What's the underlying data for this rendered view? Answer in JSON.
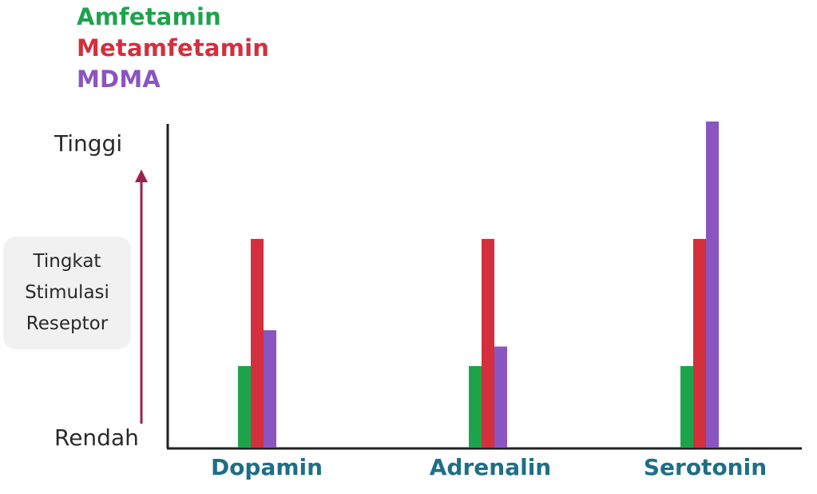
{
  "chart_data": {
    "type": "bar",
    "title": "",
    "xlabel": "",
    "ylabel": "Tingkat\nStimulasi\nReseptor",
    "y_high_label": "Tinggi",
    "y_low_label": "Rendah",
    "ylim": [
      0,
      100
    ],
    "categories": [
      "Dopamin",
      "Adrenalin",
      "Serotonin"
    ],
    "series": [
      {
        "name": "Amfetamin",
        "color": "#1ea34d",
        "values": [
          25,
          25,
          25
        ]
      },
      {
        "name": "Metamfetamin",
        "color": "#d32f3c",
        "values": [
          64,
          64,
          64
        ]
      },
      {
        "name": "MDMA",
        "color": "#8a55c0",
        "values": [
          36,
          31,
          100
        ]
      }
    ],
    "legend_position": "top-left",
    "grid": false,
    "axis_color": "#222222",
    "arrow_color": "#9e1f4d"
  }
}
